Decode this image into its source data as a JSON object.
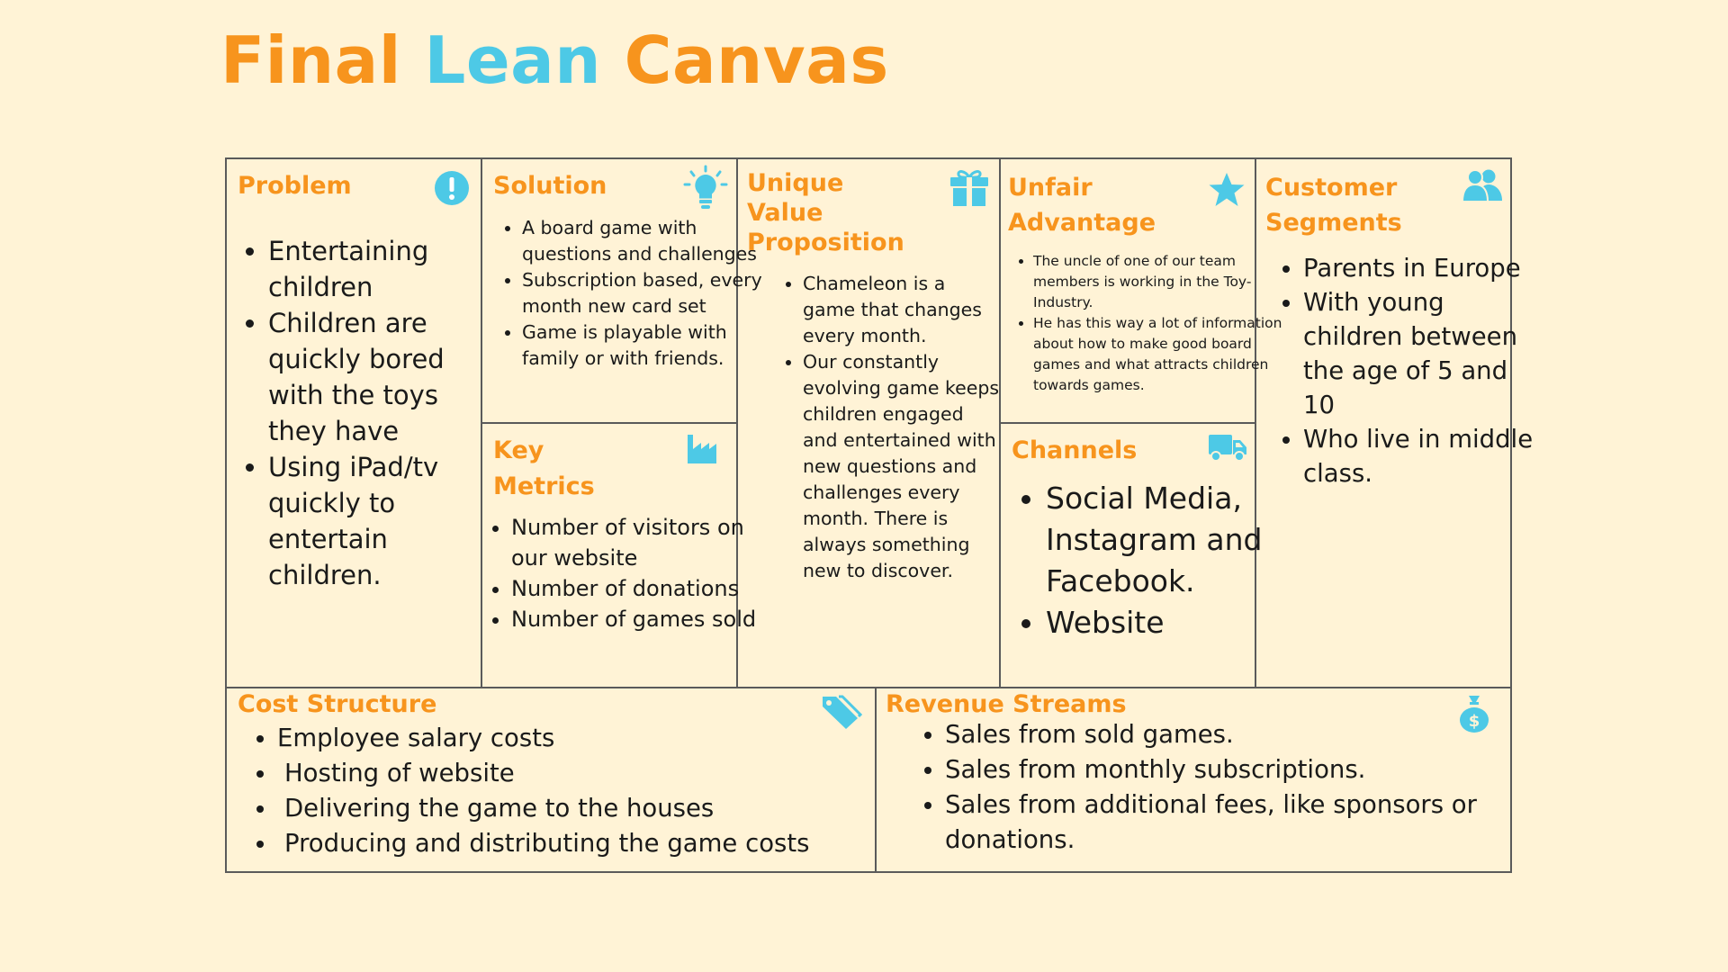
{
  "title": {
    "word1": "Final",
    "word2": "Lean",
    "word3": "Canvas"
  },
  "colors": {
    "accent_orange": "#f7941d",
    "accent_cyan": "#4dc9e6",
    "background": "#fff3d6",
    "border": "#5a5a5a"
  },
  "problem": {
    "heading": "Problem",
    "icon": "exclamation-icon",
    "items": [
      "Entertaining children",
      "Children are quickly bored with the toys they have",
      "Using iPad/tv quickly to entertain children."
    ]
  },
  "solution": {
    "heading": "Solution",
    "icon": "lightbulb-icon",
    "items": [
      "A board game with questions and challenges",
      "Subscription based, every month new card set",
      "Game is playable with family or with friends."
    ]
  },
  "key_metrics": {
    "heading_line1": "Key",
    "heading_line2": "Metrics",
    "icon": "factory-icon",
    "items": [
      "Number of visitors on our website",
      "Number of donations",
      "Number of games sold"
    ]
  },
  "uvp": {
    "heading_line1": "Unique",
    "heading_line2": "Value",
    "heading_line3": "Proposition",
    "icon": "gift-icon",
    "items": [
      "Chameleon is a game that changes every month.",
      "Our constantly evolving game keeps children engaged and entertained with new questions and challenges every month. There is always something new to discover."
    ]
  },
  "unfair_advantage": {
    "heading_line1": "Unfair",
    "heading_line2": "Advantage",
    "icon": "star-icon",
    "items": [
      "The uncle of one of our team members is working in the Toy-Industry.",
      "He has this way a lot of information about how to make good board games and what attracts children towards games."
    ]
  },
  "channels": {
    "heading": "Channels",
    "icon": "truck-icon",
    "items": [
      "Social Media, Instagram and Facebook.",
      "Website"
    ]
  },
  "customer_segments": {
    "heading_line1": "Customer",
    "heading_line2": "Segments",
    "icon": "users-icon",
    "items": [
      "Parents in Europe",
      "With young children between the age of 5 and 10",
      "Who live in middle class."
    ]
  },
  "cost_structure": {
    "heading": "Cost Structure",
    "icon": "tags-icon",
    "items": [
      "Employee salary costs",
      "Hosting of website",
      "Delivering the game to the houses",
      "Producing and distributing the game costs"
    ]
  },
  "revenue_streams": {
    "heading": "Revenue Streams",
    "icon": "money-bag-icon",
    "items": [
      "Sales from sold games.",
      "Sales from monthly subscriptions.",
      "Sales from additional fees, like sponsors or donations."
    ]
  }
}
